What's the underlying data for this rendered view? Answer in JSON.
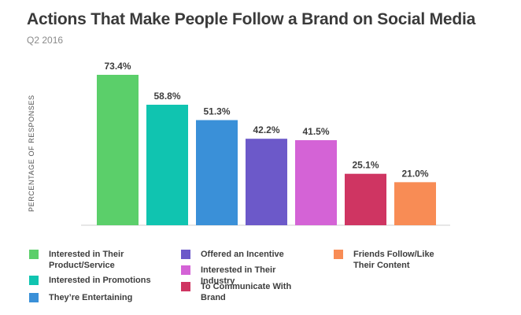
{
  "chart_data": {
    "type": "bar",
    "title": "Actions That Make People Follow a Brand on Social Media",
    "subtitle": "Q2 2016",
    "ylabel": "PERCENTAGE OF RESPONSES",
    "ylim": [
      0,
      80
    ],
    "grid": false,
    "legend_position": "bottom",
    "categories": [
      "Interested in Their Product/Service",
      "Interested in Promotions",
      "They’re Entertaining",
      "Offered an Incentive",
      "Interested in Their Industry",
      "To Communicate With Brand",
      "Friends Follow/Like Their Content"
    ],
    "values": [
      73.4,
      58.8,
      51.3,
      42.2,
      41.5,
      25.1,
      21.0
    ],
    "value_labels": [
      "73.4%",
      "58.8%",
      "51.3%",
      "42.2%",
      "41.5%",
      "25.1%",
      "21.0%"
    ],
    "colors": [
      "#5bcf6a",
      "#10c4b0",
      "#3a90d8",
      "#6c59c9",
      "#d463d6",
      "#cf3562",
      "#f88c55"
    ]
  }
}
